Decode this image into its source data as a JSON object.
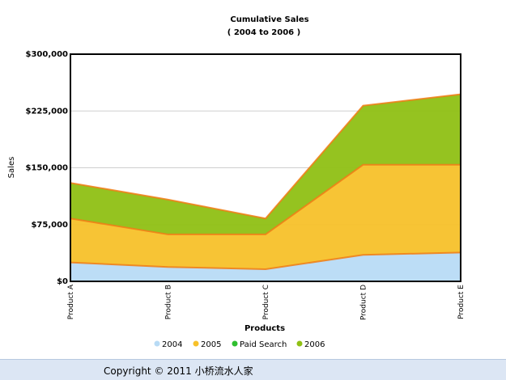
{
  "chart_data": {
    "type": "area",
    "stacked": true,
    "title": "Cumulative Sales",
    "subtitle": "( 2004 to 2006 )",
    "xlabel": "Products",
    "ylabel": "Sales",
    "categories": [
      "Product A",
      "Product B",
      "Product C",
      "Product D",
      "Product E"
    ],
    "ylim": [
      0,
      300000
    ],
    "yticks": [
      0,
      75000,
      150000,
      225000,
      300000
    ],
    "ytick_labels": [
      "$0",
      "$75,000",
      "$150,000",
      "$225,000",
      "$300,000"
    ],
    "grid": true,
    "legend_position": "bottom",
    "series": [
      {
        "name": "2004",
        "color": "#b8dbf5",
        "values": [
          25000,
          19000,
          16000,
          35000,
          38000
        ]
      },
      {
        "name": "2005",
        "color": "#f7c12a",
        "values": [
          58000,
          43000,
          46000,
          119000,
          116000
        ]
      },
      {
        "name": "Paid Search",
        "color": "#2fbf2f",
        "values": [
          0,
          0,
          0,
          0,
          0
        ]
      },
      {
        "name": "2006",
        "color": "#8fc014",
        "values": [
          47000,
          46000,
          21000,
          78000,
          93000
        ]
      }
    ],
    "stack_order": [
      "2004",
      "2005",
      "2006"
    ],
    "edge_color": "#f07d14"
  },
  "footer": {
    "copyright": "Copyright © 2011 小桥流水人家"
  }
}
